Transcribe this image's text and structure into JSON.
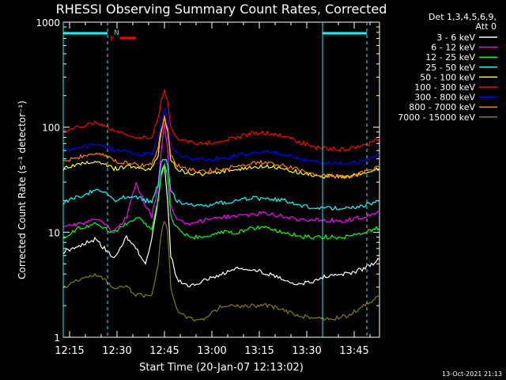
{
  "chart_data": {
    "type": "line",
    "title": "RHESSI Observing Summary Count Rates, Corrected",
    "ylabel": "Corrected Count Rate (s⁻¹ detector⁻¹)",
    "xlabel": "Start Time (20-Jan-07 12:13:02)",
    "yscale": "log",
    "ylim": [
      1,
      1000
    ],
    "xlim_minutes_after_1213": [
      0,
      100
    ],
    "x_tick_labels": [
      "12:15",
      "12:30",
      "12:45",
      "13:00",
      "13:15",
      "13:30",
      "13:45"
    ],
    "x_tick_minutes": [
      2,
      17,
      32,
      47,
      62,
      77,
      92
    ],
    "y_tick_labels": [
      "1",
      "10",
      "100",
      "1000"
    ],
    "y_ticks": [
      1,
      10,
      100,
      1000
    ],
    "legend_header": [
      "Det 1,3,4,5,6,9,",
      "Att 0"
    ],
    "footer_date": "13-Oct-2021 21:13",
    "flags": {
      "n_label": "N",
      "f_label": "F",
      "n_color": "#00ffff",
      "f_color": "#ff0000"
    },
    "x_minutes": [
      0,
      5,
      10,
      13,
      16,
      20,
      23,
      26,
      28,
      30,
      31,
      32,
      33,
      34,
      36,
      40,
      45,
      50,
      55,
      60,
      65,
      70,
      75,
      80,
      85,
      90,
      95,
      100
    ],
    "series": [
      {
        "name": "3 - 6 keV",
        "color": "#ffffff",
        "values": [
          6.5,
          7.5,
          8.5,
          7.0,
          5.5,
          9.0,
          7.0,
          5.0,
          9.0,
          20.0,
          35.0,
          45.0,
          20.0,
          6.0,
          3.5,
          3.0,
          3.5,
          4.0,
          4.5,
          4.5,
          4.0,
          3.5,
          3.2,
          3.5,
          4.0,
          4.0,
          4.5,
          5.5
        ]
      },
      {
        "name": "6 - 12 keV",
        "color": "#ff00ff",
        "values": [
          11,
          12,
          13,
          12,
          10,
          14,
          30,
          18,
          14,
          28,
          60,
          110,
          60,
          18,
          13,
          12,
          13,
          14,
          14,
          15,
          15,
          14,
          13,
          13,
          13,
          13,
          14,
          16
        ]
      },
      {
        "name": "12 - 25 keV",
        "color": "#00ff00",
        "values": [
          9,
          11,
          12,
          11,
          10,
          12,
          14,
          12,
          11,
          20,
          35,
          45,
          35,
          14,
          11,
          9,
          9,
          10,
          10,
          11,
          11,
          10,
          9,
          9,
          9,
          9,
          10,
          11
        ]
      },
      {
        "name": "25 - 50 keV",
        "color": "#00ffff",
        "values": [
          19,
          22,
          25,
          24,
          20,
          22,
          22,
          20,
          20,
          28,
          45,
          50,
          45,
          25,
          20,
          18,
          18,
          19,
          20,
          21,
          21,
          20,
          18,
          17,
          17,
          17,
          18,
          20
        ]
      },
      {
        "name": "50 - 100 keV",
        "color": "#ffff00",
        "values": [
          40,
          44,
          48,
          45,
          40,
          42,
          42,
          40,
          40,
          55,
          90,
          120,
          90,
          50,
          40,
          36,
          36,
          38,
          40,
          42,
          42,
          40,
          37,
          34,
          34,
          34,
          36,
          40
        ]
      },
      {
        "name": "100 - 300 keV",
        "color": "#ff0000",
        "values": [
          90,
          100,
          110,
          105,
          92,
          85,
          82,
          80,
          82,
          120,
          180,
          220,
          180,
          100,
          80,
          72,
          70,
          74,
          80,
          88,
          88,
          82,
          72,
          64,
          62,
          62,
          66,
          78
        ]
      },
      {
        "name": "300 - 800 keV",
        "color": "#0000ff",
        "values": [
          60,
          64,
          68,
          66,
          60,
          58,
          56,
          55,
          56,
          80,
          120,
          145,
          120,
          68,
          55,
          50,
          49,
          51,
          54,
          58,
          58,
          55,
          50,
          46,
          45,
          45,
          48,
          54
        ]
      },
      {
        "name": "800 - 7000 keV",
        "color": "#ff8000",
        "values": [
          48,
          52,
          56,
          54,
          48,
          46,
          44,
          43,
          44,
          65,
          100,
          128,
          100,
          55,
          43,
          39,
          38,
          40,
          42,
          46,
          46,
          43,
          39,
          35,
          34,
          34,
          37,
          42
        ]
      },
      {
        "name": "7000 - 15000 keV",
        "color": "#808000",
        "values": [
          3.0,
          3.5,
          4.0,
          3.5,
          3.0,
          3.0,
          2.5,
          2.5,
          2.5,
          5.0,
          10.0,
          13.0,
          10.0,
          3.0,
          1.8,
          1.5,
          1.5,
          2.0,
          2.0,
          2.0,
          2.0,
          1.8,
          1.6,
          1.5,
          1.5,
          1.6,
          2.0,
          2.5
        ]
      }
    ]
  }
}
